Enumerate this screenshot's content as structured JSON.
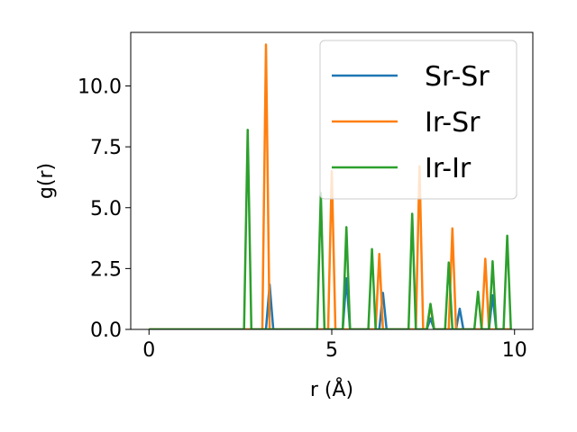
{
  "chart_data": {
    "type": "line",
    "xlabel": "r (Å)",
    "ylabel": "g(r)",
    "xlim": [
      -0.5,
      10.5
    ],
    "ylim": [
      0,
      12.2
    ],
    "xticks": [
      0,
      5,
      10
    ],
    "yticks": [
      0.0,
      2.5,
      5.0,
      7.5,
      10.0
    ],
    "xtick_labels": [
      "0",
      "5",
      "10"
    ],
    "ytick_labels": [
      "0.0",
      "2.5",
      "5.0",
      "7.5",
      "10.0"
    ],
    "grid": false,
    "legend_position": "top-right",
    "series": [
      {
        "name": "Sr-Sr",
        "color": "#1f77b4",
        "x": [
          0,
          3.2,
          3.3,
          3.4,
          5.3,
          5.4,
          5.5,
          6.3,
          6.4,
          6.5,
          7.6,
          7.7,
          7.8,
          8.4,
          8.5,
          8.6,
          9.3,
          9.4,
          9.5,
          9.9
        ],
        "y": [
          0,
          0,
          1.85,
          0,
          0,
          2.1,
          0,
          0,
          1.5,
          0,
          0,
          0.45,
          0,
          0,
          0.85,
          0,
          0,
          1.4,
          0,
          0
        ]
      },
      {
        "name": "Ir-Sr",
        "color": "#ff7f0e",
        "x": [
          0,
          3.1,
          3.2,
          3.3,
          4.9,
          5.0,
          5.1,
          6.2,
          6.3,
          6.4,
          7.3,
          7.4,
          7.5,
          7.6,
          7.7,
          7.8,
          8.2,
          8.3,
          8.4,
          9.1,
          9.2,
          9.3,
          9.9
        ],
        "y": [
          0,
          0,
          11.7,
          0,
          0,
          6.5,
          0,
          0,
          3.1,
          0,
          0,
          6.7,
          0,
          0,
          1.0,
          0,
          0,
          4.15,
          0,
          0,
          2.9,
          0,
          0
        ]
      },
      {
        "name": "Ir-Ir",
        "color": "#2ca02c",
        "x": [
          0,
          2.6,
          2.7,
          2.8,
          4.6,
          4.7,
          4.8,
          5.3,
          5.4,
          5.5,
          6.0,
          6.1,
          6.2,
          7.1,
          7.2,
          7.3,
          7.6,
          7.7,
          7.8,
          8.1,
          8.2,
          8.3,
          8.9,
          9.0,
          9.1,
          9.3,
          9.4,
          9.5,
          9.7,
          9.8,
          9.9
        ],
        "y": [
          0,
          0,
          8.2,
          0,
          0,
          5.6,
          0,
          0,
          4.2,
          0,
          0,
          3.3,
          0,
          0,
          4.75,
          0,
          0,
          1.05,
          0,
          0,
          2.75,
          0,
          0,
          1.55,
          0,
          0,
          2.8,
          0,
          0,
          3.85,
          0
        ]
      }
    ]
  }
}
